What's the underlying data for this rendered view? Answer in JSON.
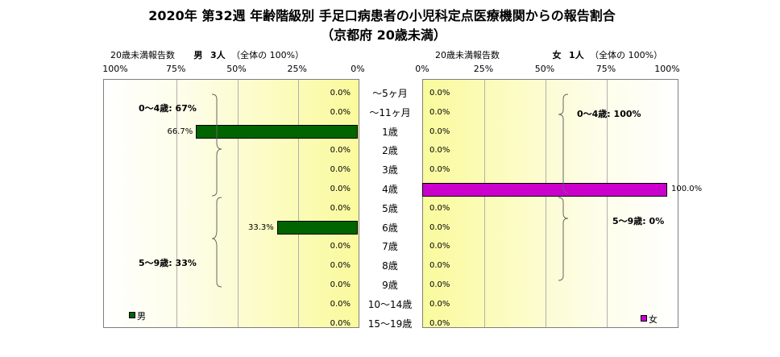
{
  "title_line1": "2020年 第32週 年齢階級別 手足口病患者の小児科定点医療機関からの報告割合",
  "title_line2": "（京都府 20歳未満）",
  "colors": {
    "male": "#006400",
    "female": "#cc00cc"
  },
  "left_header": {
    "caption": "20歳未満報告数",
    "sex": "男",
    "count": "3人",
    "note": "（全体の 100%）"
  },
  "right_header": {
    "caption": "20歳未満報告数",
    "sex": "女",
    "count": "1人",
    "note": "（全体の 100%）"
  },
  "chart_data": {
    "type": "bar",
    "orientation": "horizontal-butterfly",
    "categories": [
      "～5ヶ月",
      "～11ヶ月",
      "1歳",
      "2歳",
      "3歳",
      "4歳",
      "5歳",
      "6歳",
      "7歳",
      "8歳",
      "9歳",
      "10～14歳",
      "15～19歳"
    ],
    "series": [
      {
        "name": "男",
        "values": [
          0.0,
          0.0,
          66.7,
          0.0,
          0.0,
          0.0,
          0.0,
          33.3,
          0.0,
          0.0,
          0.0,
          0.0,
          0.0
        ],
        "labels": [
          "0.0%",
          "0.0%",
          "66.7%",
          "0.0%",
          "0.0%",
          "0.0%",
          "0.0%",
          "33.3%",
          "0.0%",
          "0.0%",
          "0.0%",
          "0.0%",
          "0.0%"
        ]
      },
      {
        "name": "女",
        "values": [
          0.0,
          0.0,
          0.0,
          0.0,
          0.0,
          100.0,
          0.0,
          0.0,
          0.0,
          0.0,
          0.0,
          0.0,
          0.0
        ],
        "labels": [
          "0.0%",
          "0.0%",
          "0.0%",
          "0.0%",
          "0.0%",
          "100.0%",
          "0.0%",
          "0.0%",
          "0.0%",
          "0.0%",
          "0.0%",
          "0.0%",
          "0.0%"
        ]
      }
    ],
    "left_ticks": [
      "100%",
      "75%",
      "50%",
      "25%",
      "0%"
    ],
    "right_ticks": [
      "0%",
      "25%",
      "50%",
      "75%",
      "100%"
    ],
    "xlim": [
      0,
      100
    ],
    "grid": true,
    "annotations": {
      "male_0_4": "0～4歳: 67%",
      "male_5_9": "5～9歳: 33%",
      "female_0_4": "0～4歳: 100%",
      "female_5_9": "5～9歳: 0%"
    },
    "legend": {
      "male": "男",
      "female": "女"
    }
  }
}
